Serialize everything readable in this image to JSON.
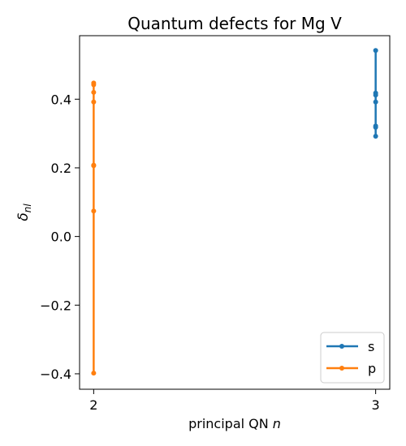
{
  "chart_data": {
    "type": "line",
    "title": "Quantum defects for Mg V",
    "xlabel": "principal QN",
    "xlabel_var": "n",
    "ylabel_base": "δ",
    "ylabel_sub": "nl",
    "xlim": [
      1.95,
      3.05
    ],
    "ylim": [
      -0.445,
      0.585
    ],
    "x_ticks": [
      2,
      3
    ],
    "y_ticks": [
      -0.4,
      -0.2,
      0.0,
      0.2,
      0.4
    ],
    "y_tick_labels": [
      "−0.4",
      "−0.2",
      "0.0",
      "0.2",
      "0.4"
    ],
    "legend_position": "lower right",
    "series": [
      {
        "name": "s",
        "color": "#1f77b4",
        "points": [
          {
            "x": 3,
            "y": 0.542
          },
          {
            "x": 3,
            "y": 0.418
          },
          {
            "x": 3,
            "y": 0.412
          },
          {
            "x": 3,
            "y": 0.392
          },
          {
            "x": 3,
            "y": 0.322
          },
          {
            "x": 3,
            "y": 0.318
          },
          {
            "x": 3,
            "y": 0.292
          }
        ]
      },
      {
        "name": "p",
        "color": "#ff7f0e",
        "points": [
          {
            "x": 2,
            "y": 0.447
          },
          {
            "x": 2,
            "y": 0.442
          },
          {
            "x": 2,
            "y": 0.42
          },
          {
            "x": 2,
            "y": 0.392
          },
          {
            "x": 2,
            "y": 0.208
          },
          {
            "x": 2,
            "y": 0.206
          },
          {
            "x": 2,
            "y": 0.074
          },
          {
            "x": 2,
            "y": -0.398
          }
        ]
      }
    ]
  }
}
